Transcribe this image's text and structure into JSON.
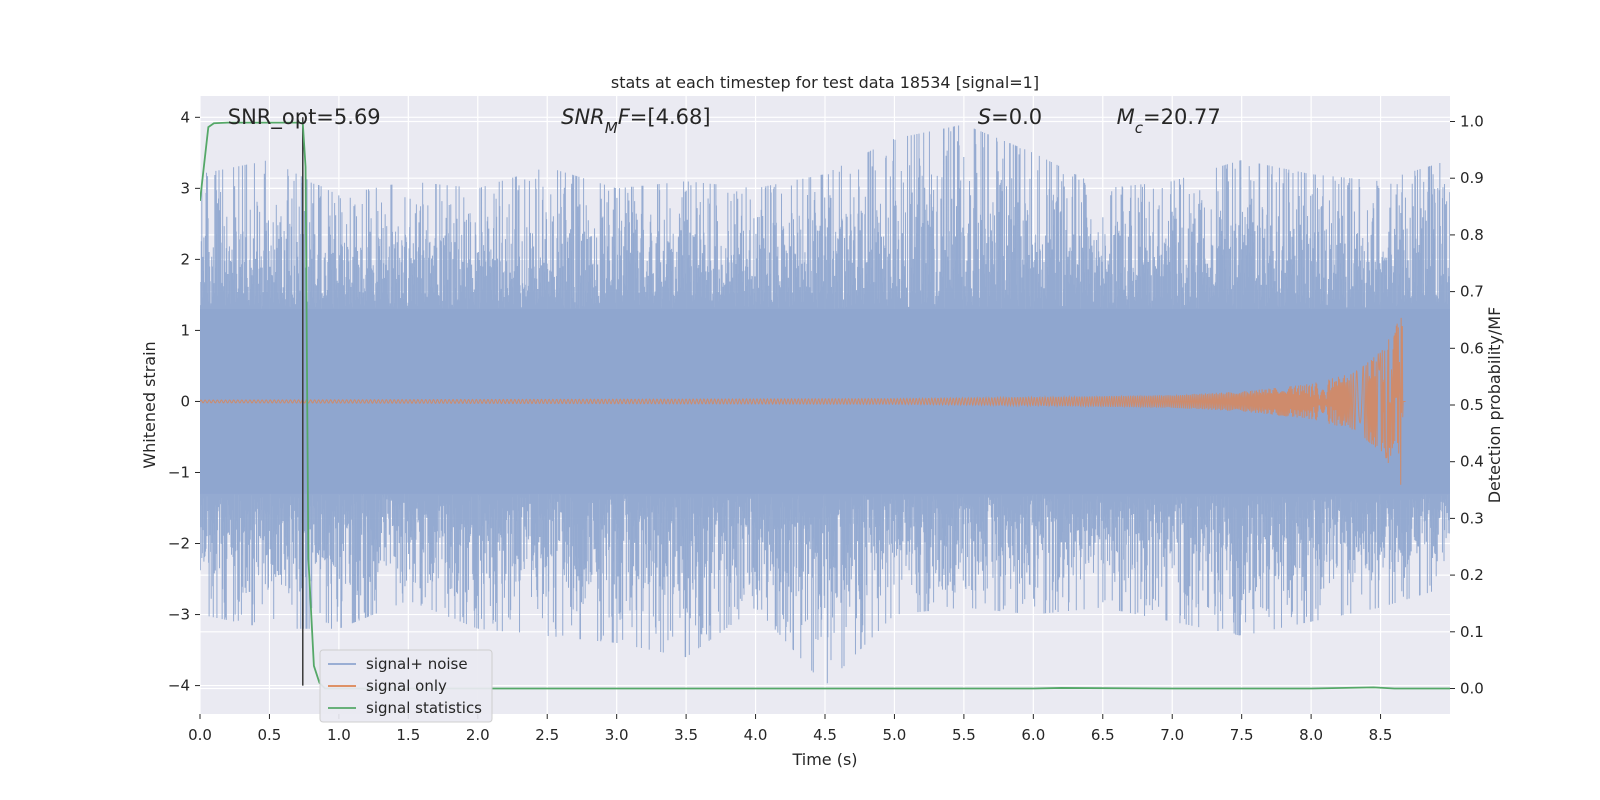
{
  "chart_data": {
    "type": "line",
    "title": "stats at each timestep for test data 18534 [signal=1]",
    "xlabel": "Time (s)",
    "ylabel_left": "Whitened strain",
    "ylabel_right": "Detection probability/MF",
    "xlim": [
      0,
      9.0
    ],
    "ylim_left": [
      -4.4,
      4.3
    ],
    "ylim_right": [
      -0.045,
      1.045
    ],
    "grid": true,
    "legend_position": "lower-left",
    "x_ticks": [
      0.0,
      0.5,
      1.0,
      1.5,
      2.0,
      2.5,
      3.0,
      3.5,
      4.0,
      4.5,
      5.0,
      5.5,
      6.0,
      6.5,
      7.0,
      7.5,
      8.0,
      8.5
    ],
    "x_tick_labels": [
      "0.0",
      "0.5",
      "1.0",
      "1.5",
      "2.0",
      "2.5",
      "3.0",
      "3.5",
      "4.0",
      "4.5",
      "5.0",
      "5.5",
      "6.0",
      "6.5",
      "7.0",
      "7.5",
      "8.0",
      "8.5"
    ],
    "y_ticks_left": [
      -4,
      -3,
      -2,
      -1,
      0,
      1,
      2,
      3,
      4
    ],
    "y_tick_labels_left": [
      "−4",
      "−3",
      "−2",
      "−1",
      "0",
      "1",
      "2",
      "3",
      "4"
    ],
    "y_ticks_right": [
      0.0,
      0.1,
      0.2,
      0.3,
      0.4,
      0.5,
      0.6,
      0.7,
      0.8,
      0.9,
      1.0
    ],
    "y_tick_labels_right": [
      "0.0",
      "0.1",
      "0.2",
      "0.3",
      "0.4",
      "0.5",
      "0.6",
      "0.7",
      "0.8",
      "0.9",
      "1.0"
    ],
    "annotations": [
      {
        "text": "SNR_opt=5.69",
        "x": 0.2
      },
      {
        "text": "SNR_MF=[4.68]",
        "x": 2.6
      },
      {
        "text": "S=0.0",
        "x": 5.6
      },
      {
        "text": "M_c=20.77",
        "x": 6.6
      }
    ],
    "vline_x": 0.74,
    "series": [
      {
        "name": "signal+ noise",
        "axis": "left",
        "color": "#8fa6cf",
        "envelope_x": [
          0.0,
          0.5,
          1.0,
          1.5,
          2.0,
          2.5,
          3.0,
          3.5,
          4.0,
          4.5,
          5.0,
          5.5,
          6.0,
          6.5,
          7.0,
          7.5,
          8.0,
          8.5,
          9.0
        ],
        "envelope_upper": [
          3.2,
          3.4,
          2.9,
          3.1,
          3.0,
          3.3,
          3.0,
          3.1,
          3.0,
          3.2,
          3.7,
          3.9,
          3.5,
          3.0,
          3.1,
          3.4,
          3.2,
          3.1,
          3.4
        ],
        "envelope_lower": [
          -3.0,
          -3.2,
          -3.2,
          -2.8,
          -3.2,
          -3.3,
          -3.4,
          -3.6,
          -2.9,
          -4.0,
          -3.0,
          -2.9,
          -3.0,
          -2.9,
          -3.1,
          -3.3,
          -3.1,
          -2.9,
          -2.6
        ]
      },
      {
        "name": "signal only",
        "axis": "left",
        "color": "#dd8452",
        "x": [
          0.0,
          5.0,
          6.0,
          7.0,
          7.5,
          8.0,
          8.3,
          8.5,
          8.6,
          8.66,
          8.68
        ],
        "amplitude": [
          0.02,
          0.04,
          0.06,
          0.09,
          0.14,
          0.25,
          0.4,
          0.7,
          1.0,
          1.3,
          0.0
        ]
      },
      {
        "name": "signal statistics",
        "axis": "right",
        "color": "#55a868",
        "x": [
          0.0,
          0.06,
          0.1,
          0.2,
          0.3,
          0.4,
          0.5,
          0.6,
          0.7,
          0.74,
          0.76,
          0.78,
          0.82,
          0.86,
          0.9,
          1.0,
          2.0,
          4.0,
          6.0,
          6.2,
          7.0,
          8.0,
          8.45,
          8.6,
          9.0
        ],
        "y": [
          0.86,
          0.99,
          0.997,
          0.998,
          0.998,
          0.998,
          0.998,
          0.998,
          0.998,
          0.997,
          0.92,
          0.23,
          0.04,
          0.01,
          0.0,
          0.0,
          0.0,
          0.0,
          0.0,
          0.001,
          0.0,
          0.0,
          0.002,
          0.0,
          0.0
        ]
      }
    ]
  }
}
